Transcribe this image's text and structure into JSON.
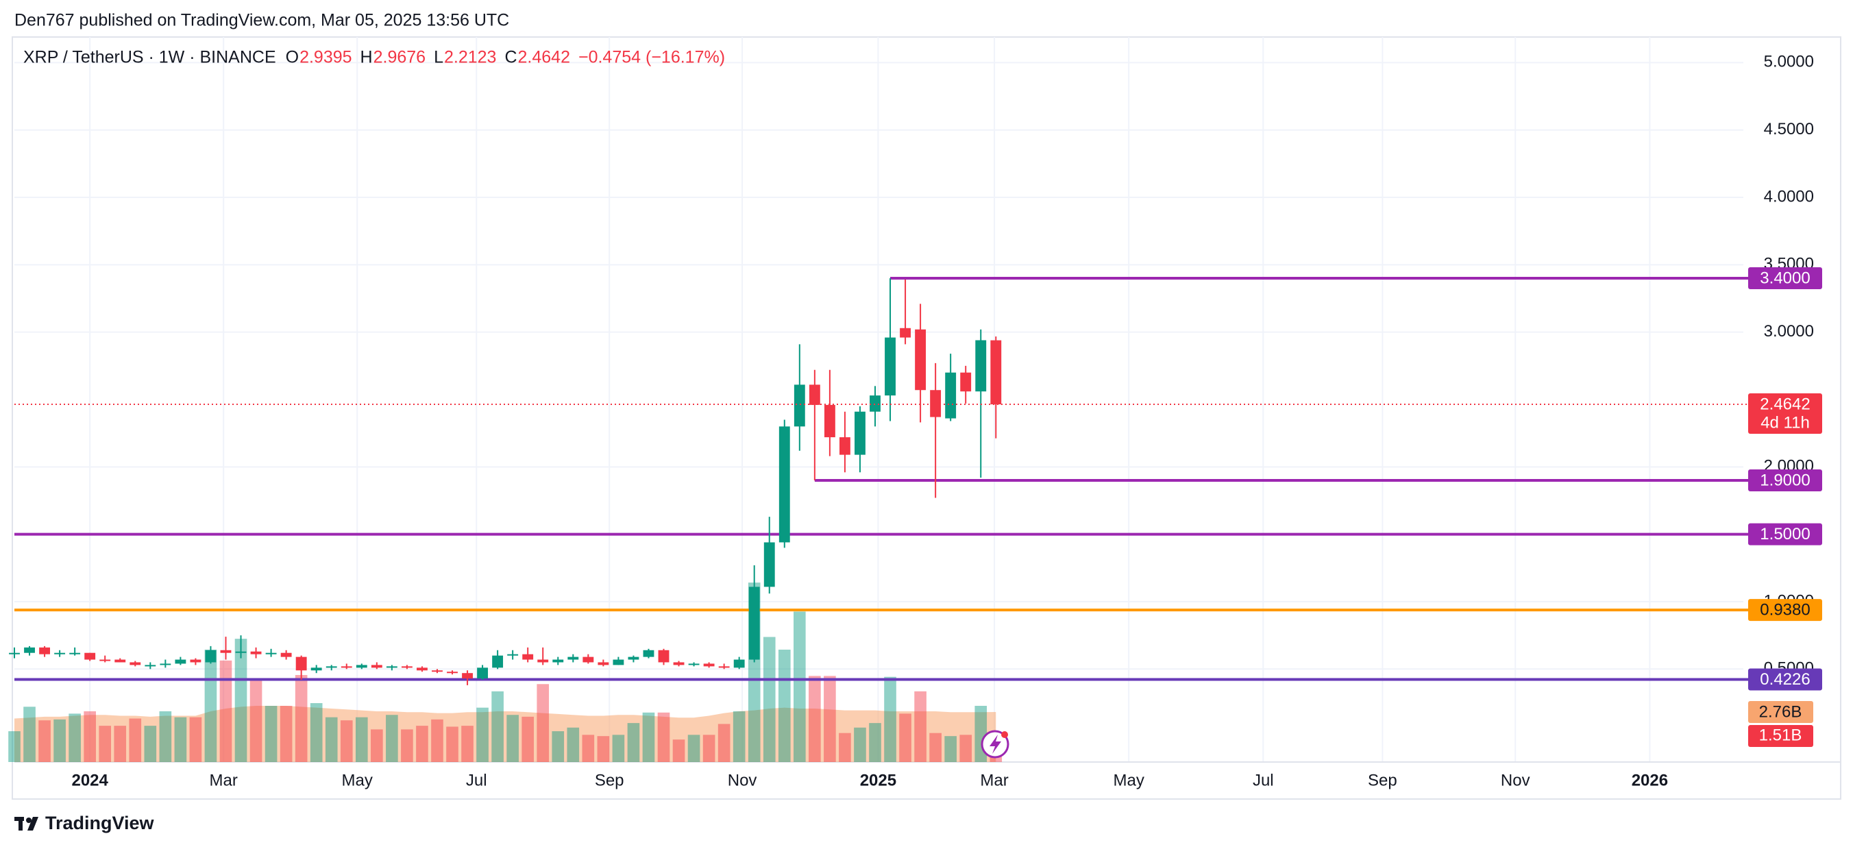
{
  "header": {
    "publisher": "Den767 published on TradingView.com, Mar 05, 2025 13:56 UTC",
    "brand": "TradingView"
  },
  "chart_data": {
    "type": "candlestick",
    "title": "XRP / TetherUS · 1W · BINANCE",
    "ohlc_labels": [
      "O",
      "H",
      "L",
      "C"
    ],
    "change": "−0.4754 (−16.17%)",
    "countdown": "4d 11h",
    "up_color": "#089981",
    "down_color": "#f23645",
    "grid": true,
    "x": [
      -5,
      -4,
      -3,
      -2,
      -1,
      0,
      1,
      2,
      3,
      4,
      5,
      6,
      7,
      8,
      9,
      10,
      11,
      12,
      13,
      14,
      15,
      16,
      17,
      18,
      19,
      20,
      21,
      22,
      23,
      24,
      25,
      26,
      27,
      28,
      29,
      30,
      31,
      32,
      33,
      34,
      35,
      36,
      37,
      38,
      39,
      40,
      41,
      42,
      43,
      44,
      45,
      46,
      47,
      48,
      49,
      50,
      51,
      52,
      53,
      54,
      55,
      56,
      57,
      58,
      59,
      60
    ],
    "xlim": [
      -5,
      109.5
    ],
    "xticks": [
      {
        "value": 0,
        "label": "2024"
      },
      {
        "value": 8.85,
        "label": "Mar"
      },
      {
        "value": 17.7,
        "label": "May"
      },
      {
        "value": 25.6,
        "label": "Jul"
      },
      {
        "value": 34.4,
        "label": "Sep"
      },
      {
        "value": 43.2,
        "label": "Nov"
      },
      {
        "value": 52.2,
        "label": "2025"
      },
      {
        "value": 59.9,
        "label": "Mar"
      },
      {
        "value": 68.8,
        "label": "May"
      },
      {
        "value": 77.7,
        "label": "Jul"
      },
      {
        "value": 85.6,
        "label": "Sep"
      },
      {
        "value": 94.4,
        "label": "Nov"
      },
      {
        "value": 103.3,
        "label": "2026"
      }
    ],
    "ylim": [
      -0.19,
      5.19
    ],
    "yticks": [
      {
        "value": 0.5,
        "label": "0.5000"
      },
      {
        "value": 1,
        "label": "1.0000"
      },
      {
        "value": 2,
        "label": "2.0000"
      },
      {
        "value": 3,
        "label": "3.0000"
      },
      {
        "value": 3.5,
        "label": "3.5000"
      },
      {
        "value": 4,
        "label": "4.0000"
      },
      {
        "value": 4.5,
        "label": "4.5000"
      },
      {
        "value": 5,
        "label": "5.0000"
      }
    ],
    "open": [
      0.61,
      0.62,
      0.66,
      0.61,
      0.62,
      0.62,
      0.57,
      0.57,
      0.55,
      0.53,
      0.53,
      0.54,
      0.57,
      0.55,
      0.64,
      0.62,
      0.63,
      0.61,
      0.62,
      0.59,
      0.49,
      0.51,
      0.52,
      0.51,
      0.53,
      0.51,
      0.52,
      0.51,
      0.49,
      0.48,
      0.47,
      0.43,
      0.51,
      0.6,
      0.61,
      0.57,
      0.55,
      0.57,
      0.59,
      0.55,
      0.53,
      0.57,
      0.59,
      0.64,
      0.55,
      0.53,
      0.54,
      0.52,
      0.51,
      0.57,
      1.11,
      1.44,
      2.3,
      2.61,
      2.46,
      2.22,
      2.09,
      2.41,
      2.53,
      3.03,
      3.02,
      2.57,
      2.36,
      2.7,
      2.56,
      2.9395
    ],
    "high": [
      0.66,
      0.67,
      0.67,
      0.64,
      0.66,
      0.62,
      0.6,
      0.58,
      0.56,
      0.55,
      0.57,
      0.59,
      0.58,
      0.67,
      0.74,
      0.75,
      0.66,
      0.65,
      0.64,
      0.6,
      0.53,
      0.53,
      0.54,
      0.54,
      0.55,
      0.53,
      0.53,
      0.52,
      0.5,
      0.49,
      0.49,
      0.53,
      0.64,
      0.64,
      0.66,
      0.66,
      0.59,
      0.61,
      0.61,
      0.57,
      0.59,
      0.6,
      0.65,
      0.65,
      0.56,
      0.55,
      0.55,
      0.54,
      0.59,
      1.27,
      1.63,
      2.35,
      2.91,
      2.72,
      2.72,
      2.41,
      2.45,
      2.6,
      3.4,
      3.39,
      3.21,
      2.77,
      2.84,
      2.75,
      3.02,
      2.9676
    ],
    "low": [
      0.58,
      0.6,
      0.59,
      0.59,
      0.6,
      0.56,
      0.55,
      0.55,
      0.52,
      0.5,
      0.51,
      0.53,
      0.53,
      0.54,
      0.57,
      0.58,
      0.58,
      0.59,
      0.57,
      0.42,
      0.47,
      0.49,
      0.5,
      0.5,
      0.5,
      0.49,
      0.5,
      0.48,
      0.47,
      0.46,
      0.38,
      0.42,
      0.5,
      0.57,
      0.55,
      0.53,
      0.53,
      0.55,
      0.54,
      0.52,
      0.53,
      0.55,
      0.58,
      0.53,
      0.52,
      0.52,
      0.51,
      0.5,
      0.5,
      0.55,
      1.06,
      1.4,
      2.12,
      1.9,
      2.08,
      1.96,
      1.96,
      2.3,
      2.34,
      2.91,
      2.33,
      1.77,
      2.34,
      2.47,
      1.92,
      2.2123
    ],
    "close": [
      0.62,
      0.66,
      0.61,
      0.62,
      0.62,
      0.57,
      0.56,
      0.55,
      0.53,
      0.53,
      0.54,
      0.57,
      0.55,
      0.64,
      0.62,
      0.63,
      0.61,
      0.62,
      0.59,
      0.49,
      0.51,
      0.52,
      0.51,
      0.53,
      0.51,
      0.52,
      0.51,
      0.49,
      0.48,
      0.47,
      0.43,
      0.51,
      0.6,
      0.61,
      0.57,
      0.55,
      0.57,
      0.59,
      0.55,
      0.53,
      0.57,
      0.59,
      0.64,
      0.55,
      0.53,
      0.54,
      0.52,
      0.51,
      0.57,
      1.11,
      1.44,
      2.3,
      2.61,
      2.46,
      2.22,
      2.09,
      2.41,
      2.53,
      2.96,
      2.96,
      2.57,
      2.37,
      2.7,
      2.56,
      2.94,
      2.4642
    ],
    "levels": [
      {
        "value": 3.4,
        "label": "3.4000",
        "color": "#9c27b0",
        "x_start": 53
      },
      {
        "value": 1.9,
        "label": "1.9000",
        "color": "#9c27b0",
        "x_start": 48
      },
      {
        "value": 1.5,
        "label": "1.5000",
        "color": "#9c27b0"
      },
      {
        "value": 0.938,
        "label": "0.9380",
        "color": "#ff9800"
      },
      {
        "value": 0.4226,
        "label": "0.4226",
        "color": "#673ab7"
      }
    ],
    "volume": {
      "ylim": [
        0,
        40
      ],
      "values": [
        1.7,
        3.05,
        2.3,
        2.35,
        2.67,
        2.8,
        2.0,
        2.0,
        2.4,
        2.0,
        2.8,
        2.47,
        2.47,
        6.2,
        5.6,
        6.8,
        4.6,
        3.1,
        3.1,
        4.8,
        3.25,
        2.47,
        2.3,
        2.47,
        1.8,
        2.6,
        1.8,
        2.0,
        2.35,
        1.95,
        2.0,
        3.0,
        3.9,
        2.6,
        2.5,
        4.3,
        1.7,
        1.9,
        1.5,
        1.43,
        1.5,
        2.15,
        2.73,
        2.73,
        1.24,
        1.5,
        1.5,
        2.1,
        2.8,
        9.9,
        6.9,
        6.2,
        8.3,
        4.75,
        4.75,
        1.6,
        1.9,
        2.15,
        4.7,
        2.67,
        3.9,
        1.6,
        1.43,
        1.5,
        3.1,
        1.51
      ],
      "last_label": "1.51B",
      "ma": [
        2.4,
        2.45,
        2.5,
        2.5,
        2.55,
        2.6,
        2.6,
        2.55,
        2.55,
        2.5,
        2.55,
        2.55,
        2.55,
        2.8,
        2.95,
        3.05,
        3.1,
        3.1,
        3.1,
        3.05,
        3.0,
        2.95,
        2.9,
        2.85,
        2.8,
        2.8,
        2.75,
        2.75,
        2.7,
        2.7,
        2.75,
        2.75,
        2.8,
        2.8,
        2.75,
        2.7,
        2.65,
        2.6,
        2.55,
        2.55,
        2.6,
        2.6,
        2.55,
        2.5,
        2.45,
        2.45,
        2.55,
        2.7,
        2.8,
        2.85,
        2.95,
        3.0,
        2.95,
        2.95,
        2.9,
        2.85,
        2.85,
        2.85,
        2.8,
        2.8,
        2.8,
        2.8,
        2.75,
        2.75,
        2.75,
        2.76
      ],
      "ma_label": "2.76B",
      "ma_color": "#f7a56f"
    }
  }
}
